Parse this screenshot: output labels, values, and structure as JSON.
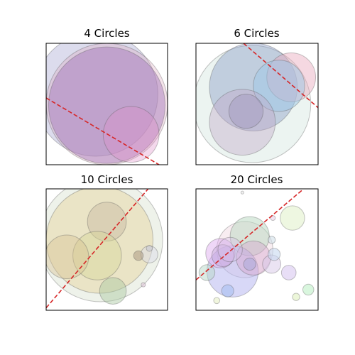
{
  "chart_data": [
    {
      "type": "scatter",
      "title": "4 Circles",
      "xlim": [
        0,
        1
      ],
      "ylim": [
        0,
        1
      ],
      "circles": [
        {
          "cx": 0.41,
          "cy": 0.58,
          "r": 0.51,
          "color": "#8a8bc4",
          "alpha": 0.3
        },
        {
          "cx": 0.5,
          "cy": 0.5,
          "r": 0.5,
          "color": "#d9a3b8",
          "alpha": 0.3
        },
        {
          "cx": 0.5,
          "cy": 0.49,
          "r": 0.48,
          "color": "#a070b8",
          "alpha": 0.45
        },
        {
          "cx": 0.7,
          "cy": 0.25,
          "r": 0.23,
          "color": "#e090c8",
          "alpha": 0.35
        }
      ],
      "divider": {
        "x": [
          0,
          0.93
        ],
        "y": [
          0.55,
          0
        ]
      }
    },
    {
      "type": "scatter",
      "title": "6 Circles",
      "xlim": [
        0,
        1
      ],
      "ylim": [
        0,
        1
      ],
      "circles": [
        {
          "cx": 0.46,
          "cy": 0.5,
          "r": 0.48,
          "color": "#c8e0d8",
          "alpha": 0.35
        },
        {
          "cx": 0.47,
          "cy": 0.64,
          "r": 0.36,
          "color": "#8fa0c8",
          "alpha": 0.45
        },
        {
          "cx": 0.78,
          "cy": 0.72,
          "r": 0.2,
          "color": "#e8a8bc",
          "alpha": 0.45
        },
        {
          "cx": 0.68,
          "cy": 0.65,
          "r": 0.21,
          "color": "#9ec8e8",
          "alpha": 0.5
        },
        {
          "cx": 0.38,
          "cy": 0.35,
          "r": 0.27,
          "color": "#c0a8c8",
          "alpha": 0.4
        },
        {
          "cx": 0.41,
          "cy": 0.44,
          "r": 0.14,
          "color": "#9a90b8",
          "alpha": 0.4
        }
      ],
      "divider": {
        "x": [
          0.39,
          1
        ],
        "y": [
          1,
          0.47
        ]
      }
    },
    {
      "type": "scatter",
      "title": "10 Circles",
      "xlim": [
        0,
        1
      ],
      "ylim": [
        0,
        1
      ],
      "circles": [
        {
          "cx": 0.45,
          "cy": 0.58,
          "r": 0.51,
          "color": "#c8d4b8",
          "alpha": 0.3
        },
        {
          "cx": 0.44,
          "cy": 0.58,
          "r": 0.44,
          "color": "#e8d8a8",
          "alpha": 0.55
        },
        {
          "cx": 0.5,
          "cy": 0.73,
          "r": 0.16,
          "color": "#c8b8a0",
          "alpha": 0.45
        },
        {
          "cx": 0.42,
          "cy": 0.45,
          "r": 0.2,
          "color": "#d8d898",
          "alpha": 0.45
        },
        {
          "cx": 0.17,
          "cy": 0.44,
          "r": 0.18,
          "color": "#d8c090",
          "alpha": 0.4
        },
        {
          "cx": 0.55,
          "cy": 0.16,
          "r": 0.11,
          "color": "#a8c8a0",
          "alpha": 0.45
        },
        {
          "cx": 0.85,
          "cy": 0.46,
          "r": 0.07,
          "color": "#dcdce8",
          "alpha": 0.5
        },
        {
          "cx": 0.76,
          "cy": 0.45,
          "r": 0.04,
          "color": "#b0a088",
          "alpha": 0.6
        },
        {
          "cx": 0.85,
          "cy": 0.51,
          "r": 0.025,
          "color": "#c8c8d0",
          "alpha": 0.6
        },
        {
          "cx": 0.8,
          "cy": 0.21,
          "r": 0.018,
          "color": "#e0c8d8",
          "alpha": 0.6
        }
      ],
      "divider": {
        "x": [
          0,
          0.84
        ],
        "y": [
          0.02,
          1
        ]
      }
    },
    {
      "type": "scatter",
      "title": "20 Circles",
      "xlim": [
        0,
        1
      ],
      "ylim": [
        0,
        1
      ],
      "circles": [
        {
          "cx": 0.4,
          "cy": 0.5,
          "r": 0.23,
          "color": "#f0d8e0",
          "alpha": 0.45
        },
        {
          "cx": 0.44,
          "cy": 0.61,
          "r": 0.16,
          "color": "#b8d8c0",
          "alpha": 0.5
        },
        {
          "cx": 0.3,
          "cy": 0.32,
          "r": 0.21,
          "color": "#b8b8f0",
          "alpha": 0.55
        },
        {
          "cx": 0.47,
          "cy": 0.43,
          "r": 0.14,
          "color": "#d8a8d0",
          "alpha": 0.45
        },
        {
          "cx": 0.62,
          "cy": 0.38,
          "r": 0.075,
          "color": "#d8c8e8",
          "alpha": 0.5
        },
        {
          "cx": 0.2,
          "cy": 0.47,
          "r": 0.12,
          "color": "#e0b0f0",
          "alpha": 0.5
        },
        {
          "cx": 0.22,
          "cy": 0.45,
          "r": 0.09,
          "color": "#c0a8d8",
          "alpha": 0.4
        },
        {
          "cx": 0.28,
          "cy": 0.5,
          "r": 0.1,
          "color": "#d8c0e8",
          "alpha": 0.4
        },
        {
          "cx": 0.63,
          "cy": 0.76,
          "r": 0.02,
          "color": "#e8d0e8",
          "alpha": 0.6
        },
        {
          "cx": 0.62,
          "cy": 0.58,
          "r": 0.03,
          "color": "#d0e0e8",
          "alpha": 0.6
        },
        {
          "cx": 0.64,
          "cy": 0.46,
          "r": 0.05,
          "color": "#c8d8f0",
          "alpha": 0.6
        },
        {
          "cx": 0.79,
          "cy": 0.76,
          "r": 0.1,
          "color": "#e0f0c8",
          "alpha": 0.55
        },
        {
          "cx": 0.09,
          "cy": 0.31,
          "r": 0.065,
          "color": "#b8d8c8",
          "alpha": 0.5
        },
        {
          "cx": 0.76,
          "cy": 0.31,
          "r": 0.06,
          "color": "#d8c8f0",
          "alpha": 0.6
        },
        {
          "cx": 0.44,
          "cy": 0.38,
          "r": 0.05,
          "color": "#a8a8d8",
          "alpha": 0.5
        },
        {
          "cx": 0.26,
          "cy": 0.16,
          "r": 0.05,
          "color": "#a8c0f0",
          "alpha": 0.6
        },
        {
          "cx": 0.92,
          "cy": 0.17,
          "r": 0.045,
          "color": "#c0f0c8",
          "alpha": 0.6
        },
        {
          "cx": 0.82,
          "cy": 0.11,
          "r": 0.03,
          "color": "#e0f0c0",
          "alpha": 0.6
        },
        {
          "cx": 0.17,
          "cy": 0.08,
          "r": 0.025,
          "color": "#e8f0c8",
          "alpha": 0.6
        },
        {
          "cx": 0.38,
          "cy": 0.97,
          "r": 0.012,
          "color": "#e8e8e8",
          "alpha": 0.6
        }
      ],
      "divider": {
        "x": [
          0,
          0.87
        ],
        "y": [
          0.25,
          0.99
        ]
      }
    }
  ],
  "colors": {
    "divider_line": "#d62728",
    "axes_frame": "#000000",
    "background": "#ffffff"
  }
}
